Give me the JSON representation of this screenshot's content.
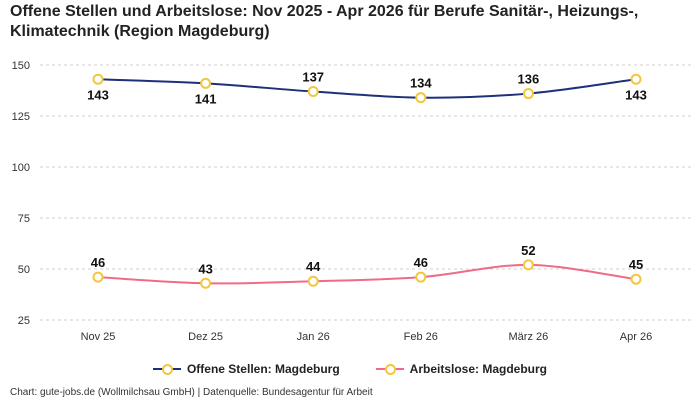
{
  "title": "Offene Stellen und Arbeitslose: Nov 2025 - Apr 2026 für Berufe Sanitär-, Heizungs-, Klimatechnik (Region Magdeburg)",
  "source": "Chart: gute-jobs.de (Wollmilchsau GmbH) | Datenquelle: Bundesagentur für Arbeit",
  "chart_data": {
    "type": "line",
    "title": "Offene Stellen und Arbeitslose: Nov 2025 - Apr 2026 für Berufe Sanitär-, Heizungs-, Klimatechnik (Region Magdeburg)",
    "categories": [
      "Nov 25",
      "Dez 25",
      "Jan 26",
      "Feb 26",
      "März 26",
      "Apr 26"
    ],
    "yticks": [
      25,
      50,
      75,
      100,
      125,
      150
    ],
    "ylim": [
      25,
      150
    ],
    "grid": true,
    "legend_position": "bottom",
    "marker_color": "#f2c73b",
    "series": [
      {
        "name": "Offene Stellen: Magdeburg",
        "values": [
          143,
          141,
          137,
          134,
          136,
          143
        ],
        "color": "#1f2f7a",
        "label_side": [
          "below",
          "below",
          "above",
          "above",
          "above",
          "below"
        ]
      },
      {
        "name": "Arbeitslose: Magdeburg",
        "values": [
          46,
          43,
          44,
          46,
          52,
          45
        ],
        "color": "#f06b86",
        "label_side": [
          "above",
          "above",
          "above",
          "above",
          "above",
          "above"
        ]
      }
    ]
  }
}
